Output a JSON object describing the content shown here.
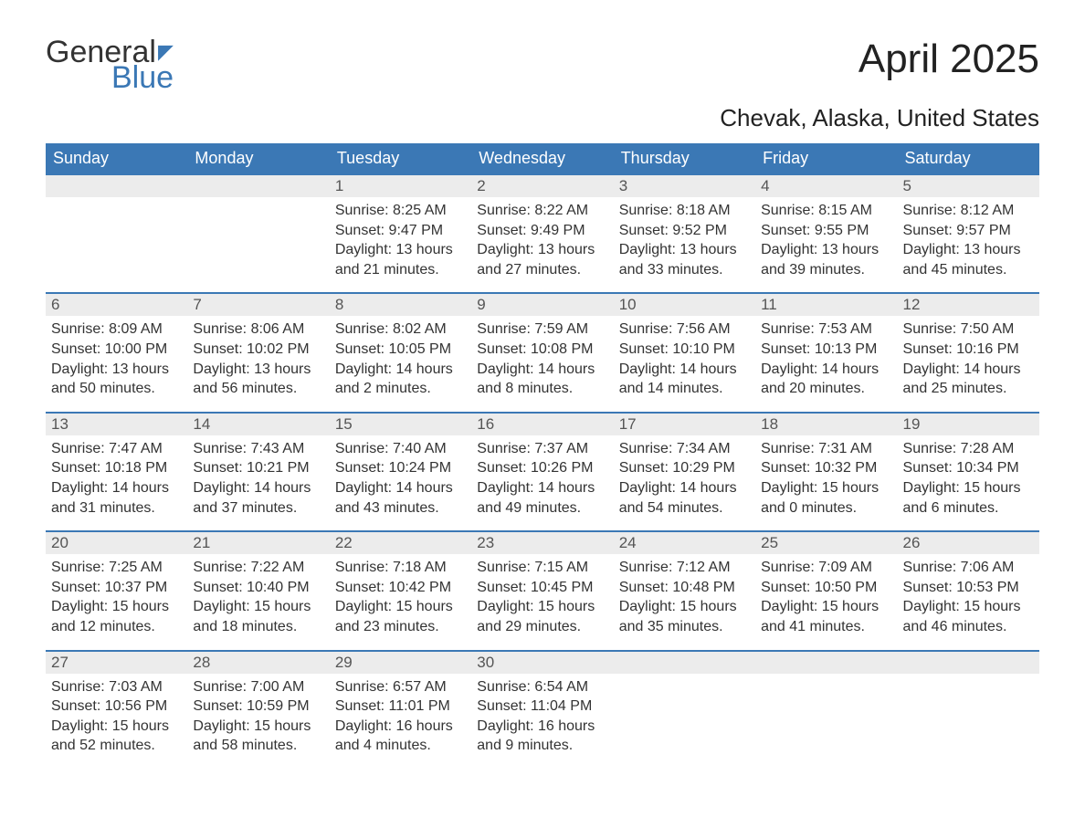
{
  "logo": {
    "word1": "General",
    "word2": "Blue",
    "flag": "◤"
  },
  "title": "April 2025",
  "subtitle": "Chevak, Alaska, United States",
  "colors": {
    "header_bg": "#3b78b5",
    "header_text": "#ffffff",
    "daynum_bg": "#ececec",
    "border_top": "#3b78b5",
    "body_text": "#333333",
    "logo_blue": "#3b78b5"
  },
  "typography": {
    "title_fontsize": 44,
    "subtitle_fontsize": 26,
    "header_fontsize": 18,
    "cell_fontsize": 16
  },
  "days_of_week": [
    "Sunday",
    "Monday",
    "Tuesday",
    "Wednesday",
    "Thursday",
    "Friday",
    "Saturday"
  ],
  "weeks": [
    [
      {
        "num": "",
        "sunrise": "",
        "sunset": "",
        "daylight1": "",
        "daylight2": ""
      },
      {
        "num": "",
        "sunrise": "",
        "sunset": "",
        "daylight1": "",
        "daylight2": ""
      },
      {
        "num": "1",
        "sunrise": "Sunrise: 8:25 AM",
        "sunset": "Sunset: 9:47 PM",
        "daylight1": "Daylight: 13 hours",
        "daylight2": "and 21 minutes."
      },
      {
        "num": "2",
        "sunrise": "Sunrise: 8:22 AM",
        "sunset": "Sunset: 9:49 PM",
        "daylight1": "Daylight: 13 hours",
        "daylight2": "and 27 minutes."
      },
      {
        "num": "3",
        "sunrise": "Sunrise: 8:18 AM",
        "sunset": "Sunset: 9:52 PM",
        "daylight1": "Daylight: 13 hours",
        "daylight2": "and 33 minutes."
      },
      {
        "num": "4",
        "sunrise": "Sunrise: 8:15 AM",
        "sunset": "Sunset: 9:55 PM",
        "daylight1": "Daylight: 13 hours",
        "daylight2": "and 39 minutes."
      },
      {
        "num": "5",
        "sunrise": "Sunrise: 8:12 AM",
        "sunset": "Sunset: 9:57 PM",
        "daylight1": "Daylight: 13 hours",
        "daylight2": "and 45 minutes."
      }
    ],
    [
      {
        "num": "6",
        "sunrise": "Sunrise: 8:09 AM",
        "sunset": "Sunset: 10:00 PM",
        "daylight1": "Daylight: 13 hours",
        "daylight2": "and 50 minutes."
      },
      {
        "num": "7",
        "sunrise": "Sunrise: 8:06 AM",
        "sunset": "Sunset: 10:02 PM",
        "daylight1": "Daylight: 13 hours",
        "daylight2": "and 56 minutes."
      },
      {
        "num": "8",
        "sunrise": "Sunrise: 8:02 AM",
        "sunset": "Sunset: 10:05 PM",
        "daylight1": "Daylight: 14 hours",
        "daylight2": "and 2 minutes."
      },
      {
        "num": "9",
        "sunrise": "Sunrise: 7:59 AM",
        "sunset": "Sunset: 10:08 PM",
        "daylight1": "Daylight: 14 hours",
        "daylight2": "and 8 minutes."
      },
      {
        "num": "10",
        "sunrise": "Sunrise: 7:56 AM",
        "sunset": "Sunset: 10:10 PM",
        "daylight1": "Daylight: 14 hours",
        "daylight2": "and 14 minutes."
      },
      {
        "num": "11",
        "sunrise": "Sunrise: 7:53 AM",
        "sunset": "Sunset: 10:13 PM",
        "daylight1": "Daylight: 14 hours",
        "daylight2": "and 20 minutes."
      },
      {
        "num": "12",
        "sunrise": "Sunrise: 7:50 AM",
        "sunset": "Sunset: 10:16 PM",
        "daylight1": "Daylight: 14 hours",
        "daylight2": "and 25 minutes."
      }
    ],
    [
      {
        "num": "13",
        "sunrise": "Sunrise: 7:47 AM",
        "sunset": "Sunset: 10:18 PM",
        "daylight1": "Daylight: 14 hours",
        "daylight2": "and 31 minutes."
      },
      {
        "num": "14",
        "sunrise": "Sunrise: 7:43 AM",
        "sunset": "Sunset: 10:21 PM",
        "daylight1": "Daylight: 14 hours",
        "daylight2": "and 37 minutes."
      },
      {
        "num": "15",
        "sunrise": "Sunrise: 7:40 AM",
        "sunset": "Sunset: 10:24 PM",
        "daylight1": "Daylight: 14 hours",
        "daylight2": "and 43 minutes."
      },
      {
        "num": "16",
        "sunrise": "Sunrise: 7:37 AM",
        "sunset": "Sunset: 10:26 PM",
        "daylight1": "Daylight: 14 hours",
        "daylight2": "and 49 minutes."
      },
      {
        "num": "17",
        "sunrise": "Sunrise: 7:34 AM",
        "sunset": "Sunset: 10:29 PM",
        "daylight1": "Daylight: 14 hours",
        "daylight2": "and 54 minutes."
      },
      {
        "num": "18",
        "sunrise": "Sunrise: 7:31 AM",
        "sunset": "Sunset: 10:32 PM",
        "daylight1": "Daylight: 15 hours",
        "daylight2": "and 0 minutes."
      },
      {
        "num": "19",
        "sunrise": "Sunrise: 7:28 AM",
        "sunset": "Sunset: 10:34 PM",
        "daylight1": "Daylight: 15 hours",
        "daylight2": "and 6 minutes."
      }
    ],
    [
      {
        "num": "20",
        "sunrise": "Sunrise: 7:25 AM",
        "sunset": "Sunset: 10:37 PM",
        "daylight1": "Daylight: 15 hours",
        "daylight2": "and 12 minutes."
      },
      {
        "num": "21",
        "sunrise": "Sunrise: 7:22 AM",
        "sunset": "Sunset: 10:40 PM",
        "daylight1": "Daylight: 15 hours",
        "daylight2": "and 18 minutes."
      },
      {
        "num": "22",
        "sunrise": "Sunrise: 7:18 AM",
        "sunset": "Sunset: 10:42 PM",
        "daylight1": "Daylight: 15 hours",
        "daylight2": "and 23 minutes."
      },
      {
        "num": "23",
        "sunrise": "Sunrise: 7:15 AM",
        "sunset": "Sunset: 10:45 PM",
        "daylight1": "Daylight: 15 hours",
        "daylight2": "and 29 minutes."
      },
      {
        "num": "24",
        "sunrise": "Sunrise: 7:12 AM",
        "sunset": "Sunset: 10:48 PM",
        "daylight1": "Daylight: 15 hours",
        "daylight2": "and 35 minutes."
      },
      {
        "num": "25",
        "sunrise": "Sunrise: 7:09 AM",
        "sunset": "Sunset: 10:50 PM",
        "daylight1": "Daylight: 15 hours",
        "daylight2": "and 41 minutes."
      },
      {
        "num": "26",
        "sunrise": "Sunrise: 7:06 AM",
        "sunset": "Sunset: 10:53 PM",
        "daylight1": "Daylight: 15 hours",
        "daylight2": "and 46 minutes."
      }
    ],
    [
      {
        "num": "27",
        "sunrise": "Sunrise: 7:03 AM",
        "sunset": "Sunset: 10:56 PM",
        "daylight1": "Daylight: 15 hours",
        "daylight2": "and 52 minutes."
      },
      {
        "num": "28",
        "sunrise": "Sunrise: 7:00 AM",
        "sunset": "Sunset: 10:59 PM",
        "daylight1": "Daylight: 15 hours",
        "daylight2": "and 58 minutes."
      },
      {
        "num": "29",
        "sunrise": "Sunrise: 6:57 AM",
        "sunset": "Sunset: 11:01 PM",
        "daylight1": "Daylight: 16 hours",
        "daylight2": "and 4 minutes."
      },
      {
        "num": "30",
        "sunrise": "Sunrise: 6:54 AM",
        "sunset": "Sunset: 11:04 PM",
        "daylight1": "Daylight: 16 hours",
        "daylight2": "and 9 minutes."
      },
      {
        "num": "",
        "sunrise": "",
        "sunset": "",
        "daylight1": "",
        "daylight2": ""
      },
      {
        "num": "",
        "sunrise": "",
        "sunset": "",
        "daylight1": "",
        "daylight2": ""
      },
      {
        "num": "",
        "sunrise": "",
        "sunset": "",
        "daylight1": "",
        "daylight2": ""
      }
    ]
  ]
}
